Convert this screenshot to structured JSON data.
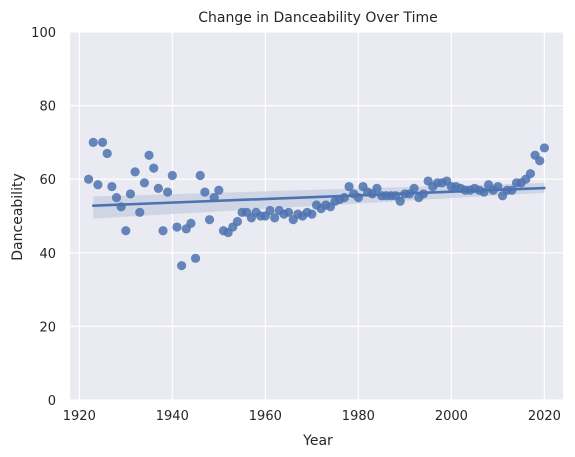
{
  "chart_data": {
    "type": "scatter",
    "title": "Change in Danceability Over Time",
    "xlabel": "Year",
    "ylabel": "Danceability",
    "xlim": [
      1918,
      2024
    ],
    "ylim": [
      0,
      100
    ],
    "xticks": [
      1920,
      1940,
      1960,
      1980,
      2000,
      2020
    ],
    "yticks": [
      0,
      20,
      40,
      60,
      80,
      100
    ],
    "grid": true,
    "colors": {
      "background": "#eaeaf2",
      "points": "#4c72b0",
      "line": "#4c72b0",
      "band": "#c5cde0"
    },
    "series": [
      {
        "x": [
          1922,
          1923,
          1924,
          1925,
          1926,
          1927,
          1928,
          1929,
          1930,
          1931,
          1932,
          1933,
          1934,
          1935,
          1936,
          1937,
          1938,
          1939,
          1940,
          1941,
          1942,
          1943,
          1944,
          1945,
          1946,
          1947,
          1948,
          1949,
          1950,
          1951,
          1952,
          1953,
          1954,
          1955,
          1956,
          1957,
          1958,
          1959,
          1960,
          1961,
          1962,
          1963,
          1964,
          1965,
          1966,
          1967,
          1968,
          1969,
          1970,
          1971,
          1972,
          1973,
          1974,
          1975,
          1976,
          1977,
          1978,
          1979,
          1980,
          1981,
          1982,
          1983,
          1984,
          1985,
          1986,
          1987,
          1988,
          1989,
          1990,
          1991,
          1992,
          1993,
          1994,
          1995,
          1996,
          1997,
          1998,
          1999,
          2000,
          2001,
          2002,
          2003,
          2004,
          2005,
          2006,
          2007,
          2008,
          2009,
          2010,
          2011,
          2012,
          2013,
          2014,
          2015,
          2016,
          2017,
          2018,
          2019,
          2020
        ],
        "y": [
          60,
          70,
          58.5,
          70,
          67,
          58,
          55,
          52.5,
          46,
          56,
          62,
          51,
          59,
          66.5,
          63,
          57.5,
          46,
          56.5,
          61,
          47,
          36.5,
          46.5,
          48,
          38.5,
          61,
          56.5,
          49,
          55,
          57,
          46,
          45.5,
          47,
          48.5,
          51,
          51,
          49.5,
          51,
          50,
          50,
          51.5,
          49.5,
          51.5,
          50.5,
          51,
          49,
          50.5,
          50,
          51,
          50.5,
          53,
          52,
          53,
          52.5,
          54,
          54.5,
          55,
          58,
          56,
          55,
          58,
          56.5,
          56,
          57.5,
          55.5,
          55.5,
          55.5,
          55.5,
          54,
          56,
          56,
          57.5,
          55,
          56,
          59.5,
          58,
          59,
          59,
          59.5,
          58,
          58,
          57.5,
          57,
          57,
          57.5,
          57,
          56.5,
          58.5,
          57,
          58,
          55.5,
          57,
          57,
          59,
          59,
          60,
          61.5,
          66.5,
          65,
          68.5
        ]
      }
    ],
    "regression": {
      "x": [
        1923,
        2020
      ],
      "y": [
        52.8,
        57.6
      ],
      "ci_lower": [
        49.3,
        56.3
      ],
      "ci_upper": [
        55.3,
        59.0
      ]
    }
  }
}
